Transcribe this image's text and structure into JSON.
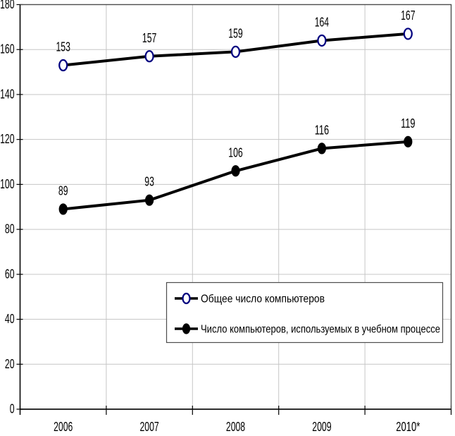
{
  "chart_data": {
    "type": "line",
    "categories": [
      "2006",
      "2007",
      "2008",
      "2009",
      "2010*"
    ],
    "series": [
      {
        "name": "Общее число компьютеров",
        "values": [
          153,
          157,
          159,
          164,
          167
        ],
        "marker": "open-circle",
        "marker_fill": "#ffffff",
        "marker_stroke": "#000080",
        "line_color": "#000000"
      },
      {
        "name": "Число компьютеров, используемых в учебном процессе",
        "values": [
          89,
          93,
          106,
          116,
          119
        ],
        "marker": "filled-circle",
        "marker_fill": "#000000",
        "marker_stroke": "#000000",
        "line_color": "#000000"
      }
    ],
    "title": "",
    "xlabel": "",
    "ylabel": "",
    "ylim": [
      0,
      180
    ],
    "ytick_step": 20,
    "yticks": [
      0,
      20,
      40,
      60,
      80,
      100,
      120,
      140,
      160,
      180
    ],
    "grid": true,
    "data_labels": true,
    "legend_position": "inside-bottom-right"
  },
  "legend": {
    "items": [
      {
        "label": "Общее число компьютеров",
        "marker": "open-circle-marker-icon"
      },
      {
        "label": "Число компьютеров, используемых в учебном процессе",
        "marker": "filled-circle-marker-icon"
      }
    ]
  },
  "colors": {
    "background": "#ffffff",
    "gridline": "#c6c6c6",
    "frame": "#4d4d4d",
    "axis": "#000000",
    "text": "#000000",
    "series1_marker_stroke": "#000080",
    "series1_marker_fill": "#ffffff",
    "series2_marker_fill": "#000000",
    "line": "#000000"
  }
}
